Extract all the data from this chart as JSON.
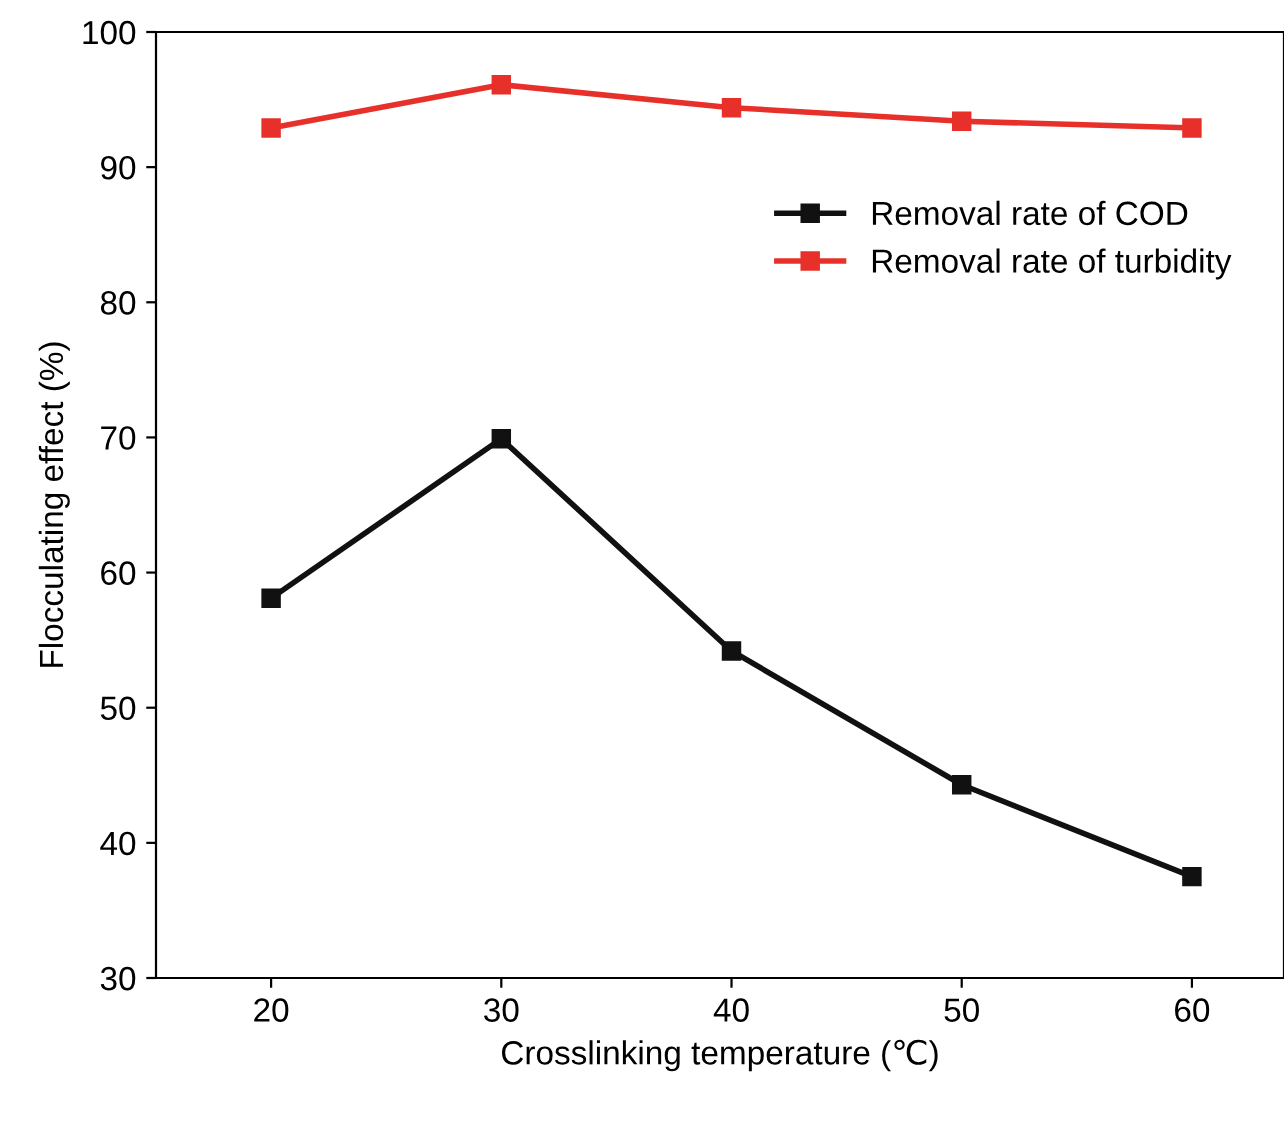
{
  "chart_data": {
    "type": "line",
    "xlabel": "Crosslinking temperature (℃)",
    "ylabel": "Flocculating effect (%)",
    "x": [
      20,
      30,
      40,
      50,
      60
    ],
    "series": [
      {
        "name": "Removal rate of COD",
        "color": "#111111",
        "values": [
          58.1,
          69.9,
          54.2,
          44.3,
          37.5
        ]
      },
      {
        "name": "Removal rate of turbidity",
        "color": "#e8302a",
        "values": [
          92.9,
          96.1,
          94.4,
          93.4,
          92.9
        ]
      }
    ],
    "xlim": [
      15,
      64
    ],
    "ylim": [
      30,
      100
    ],
    "xticks": [
      20,
      30,
      40,
      50,
      60
    ],
    "yticks": [
      30,
      40,
      50,
      60,
      70,
      80,
      90,
      100
    ],
    "marker": "square",
    "line_style": "solid",
    "legend": "right",
    "grid": false
  }
}
